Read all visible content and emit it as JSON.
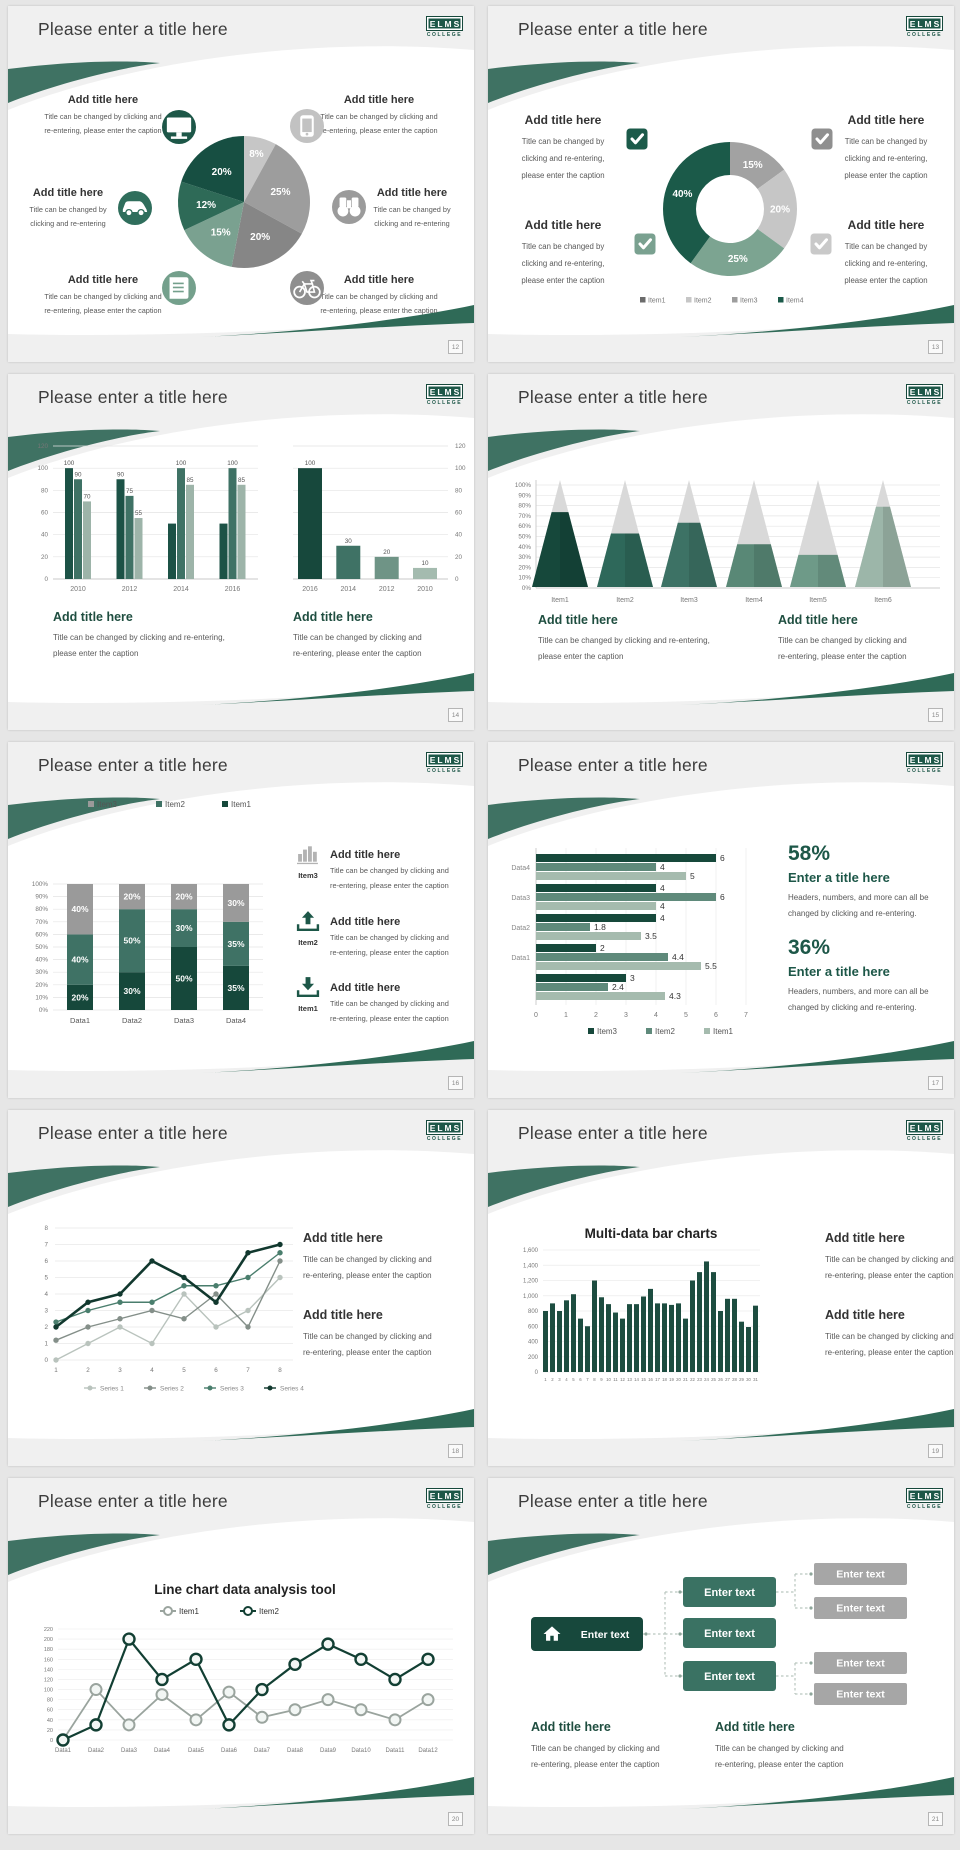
{
  "logo": {
    "line1": "ELMS",
    "line2": "COLLEGE"
  },
  "palette": {
    "swoosh": "#3f7263",
    "wedge": "#2f6a57",
    "green": "#1d5748",
    "green_dark": "#17483c",
    "caption": "#595959",
    "slide_bg": "#f0f0f0"
  },
  "slides": [
    {
      "title": "Please enter a title here",
      "page": "12",
      "type": "pie_callouts",
      "chart_data": {
        "type": "pie",
        "slices": [
          {
            "label": "8%",
            "value": 8,
            "color": "#c6c6c6"
          },
          {
            "label": "25%",
            "value": 25,
            "color": "#9d9d9d"
          },
          {
            "label": "20%",
            "value": 20,
            "color": "#868686"
          },
          {
            "label": "15%",
            "value": 15,
            "color": "#7aa190"
          },
          {
            "label": "12%",
            "value": 12,
            "color": "#2e6a57"
          },
          {
            "label": "20%",
            "value": 20,
            "color": "#174f42"
          }
        ]
      },
      "callouts": [
        {
          "title": "Add title here",
          "lines": [
            "Title can be changed by clicking and",
            "re-entering, please enter the caption"
          ],
          "icon": "monitor",
          "icon_color": "#1d5748"
        },
        {
          "title": "Add title here",
          "lines": [
            "Title can be changed by clicking and",
            "re-entering, please enter the caption"
          ],
          "icon": "phone",
          "icon_color": "#c2c2c2"
        },
        {
          "title": "Add title here",
          "lines": [
            "Title can be changed by",
            "clicking and re-entering"
          ],
          "icon": "car",
          "icon_color": "#2f6e5c"
        },
        {
          "title": "Add title here",
          "lines": [
            "Title can be changed by",
            "clicking and re-entering"
          ],
          "icon": "binoculars",
          "icon_color": "#9b9b9b"
        },
        {
          "title": "Add title here",
          "lines": [
            "Title can be changed by clicking and",
            "re-entering, please enter the caption"
          ],
          "icon": "book",
          "icon_color": "#74a08c"
        },
        {
          "title": "Add title here",
          "lines": [
            "Title can be changed by clicking and",
            "re-entering, please enter the caption"
          ],
          "icon": "bicycle",
          "icon_color": "#8f8f8f"
        }
      ]
    },
    {
      "title": "Please enter a title here",
      "page": "13",
      "type": "donut_checks",
      "chart_data": {
        "type": "pie",
        "donut": true,
        "slices": [
          {
            "label": "15%",
            "value": 15,
            "color": "#a2a2a2"
          },
          {
            "label": "20%",
            "value": 20,
            "color": "#c6c6c6"
          },
          {
            "label": "25%",
            "value": 25,
            "color": "#7ca491"
          },
          {
            "label": "40%",
            "value": 40,
            "color": "#1b5a49"
          }
        ],
        "legend": [
          {
            "label": "Item1",
            "color": "#6b6b6b"
          },
          {
            "label": "Item2",
            "color": "#c6c6c6"
          },
          {
            "label": "Item3",
            "color": "#9d9d9d"
          },
          {
            "label": "Item4",
            "color": "#1b5a49"
          }
        ]
      },
      "checkbox_colors": [
        "#1b5a49",
        "#8f8f8f",
        "#7aa190",
        "#c9c9c9"
      ],
      "blocks": [
        {
          "title": "Add title here",
          "lines": [
            "Title can be changed by",
            "clicking and re-entering,",
            "please enter the caption"
          ]
        },
        {
          "title": "Add title here",
          "lines": [
            "Title can be changed by",
            "clicking and re-entering,",
            "please enter the caption"
          ]
        },
        {
          "title": "Add title here",
          "lines": [
            "Title can be changed by",
            "clicking and re-entering,",
            "please enter the caption"
          ]
        },
        {
          "title": "Add title here",
          "lines": [
            "Title can be changed by",
            "clicking and re-entering,",
            "please enter the caption"
          ]
        }
      ]
    },
    {
      "title": "Please enter a title here",
      "page": "14",
      "type": "dual_bar",
      "chart_data": [
        {
          "type": "bar",
          "categories": [
            "2010",
            "2012",
            "2014",
            "2016"
          ],
          "ylim": [
            0,
            120
          ],
          "ystep": 20,
          "series": [
            {
              "color": "#1c5246",
              "values": [
                100,
                90,
                50,
                50
              ],
              "labels": [
                "100",
                "90",
                "",
                ""
              ]
            },
            {
              "color": "#3f7265",
              "values": [
                90,
                75,
                100,
                100
              ],
              "labels": [
                "90",
                "75",
                "100",
                "100"
              ]
            },
            {
              "color": "#9db4a9",
              "values": [
                70,
                55,
                85,
                85
              ],
              "labels": [
                "70",
                "55",
                "85",
                "85"
              ]
            }
          ]
        },
        {
          "type": "bar",
          "categories": [
            "2016",
            "2014",
            "2012",
            "2010"
          ],
          "ylim": [
            0,
            120
          ],
          "ystep": 20,
          "values": [
            100,
            30,
            20,
            10
          ],
          "labels": [
            "100",
            "30",
            "20",
            "10"
          ],
          "colors": [
            "#17483c",
            "#3f7265",
            "#6f9486",
            "#a4bbaf"
          ]
        }
      ],
      "blocks": [
        {
          "title": "Add title here",
          "lines": [
            "Title can be changed by clicking and re-entering,",
            "please enter the caption"
          ]
        },
        {
          "title": "Add title here",
          "lines": [
            "Title can be changed by clicking and",
            "re-entering, please enter the caption"
          ]
        }
      ]
    },
    {
      "title": "Please enter a title here",
      "page": "15",
      "type": "cones",
      "chart_data": {
        "type": "cone",
        "categories": [
          "Item1",
          "Item2",
          "Item3",
          "Item4",
          "Item5",
          "Item6"
        ],
        "values": [
          70,
          50,
          60,
          40,
          30,
          75
        ],
        "colors": [
          "#16483b",
          "#2e685a",
          "#3d7265",
          "#598876",
          "#6e9a88",
          "#9cb6a9"
        ],
        "ylim": [
          0,
          100
        ],
        "ystep": 10
      },
      "blocks": [
        {
          "title": "Add title here",
          "lines": [
            "Title can be changed by clicking and re-entering,",
            "please enter the caption"
          ]
        },
        {
          "title": "Add title here",
          "lines": [
            "Title can be changed by clicking and",
            "re-entering, please enter the caption"
          ]
        }
      ]
    },
    {
      "title": "Please enter a title here",
      "page": "16",
      "type": "stacked",
      "chart_data": {
        "type": "stacked_bar",
        "categories": [
          "Data1",
          "Data2",
          "Data3",
          "Data4"
        ],
        "ylim": [
          0,
          100
        ],
        "ystep": 10,
        "series": [
          {
            "name": "Item1",
            "color": "#16483b",
            "values": [
              20,
              30,
              50,
              35
            ]
          },
          {
            "name": "Item2",
            "color": "#3f7265",
            "values": [
              40,
              50,
              30,
              35
            ]
          },
          {
            "name": "Item3",
            "color": "#9a9a9a",
            "values": [
              40,
              20,
              20,
              30
            ]
          }
        ],
        "legend": [
          {
            "label": "Item3",
            "color": "#9a9a9a"
          },
          {
            "label": "Item2",
            "color": "#3f7265"
          },
          {
            "label": "Item1",
            "color": "#16483b"
          }
        ]
      },
      "rows": [
        {
          "icon": "chart-bars",
          "icon_color": "#b3b3b3",
          "label": "Item3",
          "title": "Add title here",
          "lines": [
            "Title can be changed by clicking and",
            "re-entering, please enter the caption"
          ]
        },
        {
          "icon": "upload",
          "icon_color": "#1d5748",
          "label": "Item2",
          "title": "Add title here",
          "lines": [
            "Title can be changed by clicking and",
            "re-entering, please enter the caption"
          ]
        },
        {
          "icon": "download",
          "icon_color": "#1d5748",
          "label": "Item1",
          "title": "Add title here",
          "lines": [
            "Title can be changed by clicking and",
            "re-entering, please enter the caption"
          ]
        }
      ]
    },
    {
      "title": "Please enter a title here",
      "page": "17",
      "type": "hbar",
      "chart_data": {
        "type": "bar",
        "horizontal": true,
        "xlim": [
          0,
          7
        ],
        "series_colors": [
          "#16483b",
          "#5f8a7b",
          "#a5bbae"
        ],
        "groups": [
          {
            "label": "Data4",
            "values": [
              6,
              4,
              5
            ]
          },
          {
            "label": "Data3",
            "values": [
              4,
              6,
              4
            ]
          },
          {
            "label": "Data2",
            "values": [
              4,
              1.8,
              3.5
            ]
          },
          {
            "label": "Data1",
            "values": [
              2,
              4.4,
              5.5
            ]
          },
          {
            "label": "",
            "values": [
              3,
              2.4,
              4.3
            ]
          }
        ],
        "legend": [
          {
            "label": "Item3",
            "color": "#16483b"
          },
          {
            "label": "Item2",
            "color": "#5f8a7b"
          },
          {
            "label": "Item1",
            "color": "#a5bbae"
          }
        ]
      },
      "stats": [
        {
          "pct": "58%",
          "title": "Enter a title here",
          "lines": [
            "Headers, numbers, and more can all be",
            "changed by clicking and re-entering."
          ]
        },
        {
          "pct": "36%",
          "title": "Enter a title here",
          "lines": [
            "Headers, numbers, and more can all be",
            "changed by clicking and re-entering."
          ]
        }
      ]
    },
    {
      "title": "Please enter a title here",
      "page": "18",
      "type": "line4",
      "chart_data": {
        "type": "line",
        "x": [
          "1",
          "2",
          "3",
          "4",
          "5",
          "6",
          "7",
          "8"
        ],
        "ylim": [
          0,
          8
        ],
        "ystep": 1,
        "series": [
          {
            "name": "Series 1",
            "color": "#b9c3bd",
            "values": [
              0,
              1,
              2,
              1,
              4,
              2,
              3,
              5
            ]
          },
          {
            "name": "Series 2",
            "color": "#848f89",
            "values": [
              1.2,
              2,
              2.5,
              3,
              2.5,
              4,
              2,
              6
            ]
          },
          {
            "name": "Series 3",
            "color": "#4a7e6d",
            "values": [
              2.3,
              3,
              3.5,
              3.5,
              4.5,
              4.5,
              5,
              6.5
            ]
          },
          {
            "name": "Series 4",
            "color": "#11382e",
            "values": [
              2,
              3.5,
              4,
              6,
              5,
              3.5,
              6.5,
              7
            ]
          }
        ]
      },
      "blocks": [
        {
          "title": "Add title here",
          "lines": [
            "Title can be changed by clicking and",
            "re-entering, please enter the caption"
          ]
        },
        {
          "title": "Add title here",
          "lines": [
            "Title can be changed by clicking and",
            "re-entering, please enter the caption"
          ]
        }
      ]
    },
    {
      "title": "Please enter a title here",
      "page": "19",
      "type": "multibar",
      "chart_data": {
        "type": "bar",
        "title": "Multi-data bar charts",
        "ylim": [
          0,
          1600
        ],
        "yticks": [
          "0",
          "200",
          "400",
          "600",
          "800",
          "1,000",
          "1,200",
          "1,400",
          "1,600"
        ],
        "color": "#1d4d40",
        "values": [
          800,
          900,
          800,
          940,
          1020,
          700,
          600,
          1200,
          980,
          890,
          780,
          700,
          890,
          890,
          990,
          1090,
          900,
          900,
          880,
          900,
          700,
          1200,
          1310,
          1450,
          1310,
          800,
          960,
          960,
          660,
          590,
          870
        ]
      },
      "blocks": [
        {
          "title": "Add title here",
          "lines": [
            "Title can be changed by clicking and",
            "re-entering, please enter the caption"
          ]
        },
        {
          "title": "Add title here",
          "lines": [
            "Title can be changed by clicking and",
            "re-entering, please enter the caption"
          ]
        }
      ]
    },
    {
      "title": "Please enter a title here",
      "page": "20",
      "type": "line2",
      "chart_data": {
        "type": "line",
        "title": "Line chart data analysis tool",
        "categories": [
          "Data1",
          "Data2",
          "Data3",
          "Data4",
          "Data5",
          "Data6",
          "Data7",
          "Data8",
          "Data9",
          "Data10",
          "Data11",
          "Data12"
        ],
        "ylim": [
          0,
          220
        ],
        "ystep": 20,
        "series": [
          {
            "name": "Item1",
            "color": "#9aa49e",
            "values": [
              0,
              100,
              30,
              90,
              40,
              95,
              45,
              60,
              80,
              60,
              40,
              80
            ]
          },
          {
            "name": "Item2",
            "color": "#123f33",
            "values": [
              0,
              30,
              200,
              120,
              160,
              30,
              100,
              150,
              190,
              160,
              120,
              160
            ]
          }
        ]
      }
    },
    {
      "title": "Please enter a title here",
      "page": "21",
      "type": "orgchart",
      "diagram": {
        "root": {
          "label": "Enter text",
          "icon": "home"
        },
        "mid": [
          "Enter text",
          "Enter text",
          "Enter text"
        ],
        "leaf": [
          "Enter text",
          "Enter text",
          "Enter text",
          "Enter text"
        ]
      },
      "blocks": [
        {
          "title": "Add title here",
          "lines": [
            "Title can be changed by clicking and",
            "re-entering, please enter the caption"
          ]
        },
        {
          "title": "Add title here",
          "lines": [
            "Title can be changed by clicking and",
            "re-entering, please enter the caption"
          ]
        }
      ]
    }
  ]
}
